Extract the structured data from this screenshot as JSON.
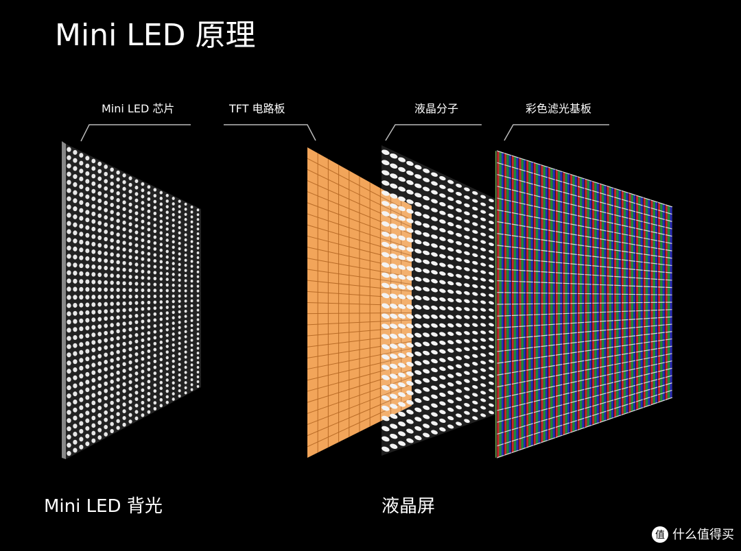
{
  "title": "Mini LED 原理",
  "layers": [
    {
      "label": "Mini LED 芯片"
    },
    {
      "label": "TFT 电路板"
    },
    {
      "label": "液晶分子"
    },
    {
      "label": "彩色滤光基板"
    }
  ],
  "groups": [
    {
      "label": "Mini LED 背光"
    },
    {
      "label": "液晶屏"
    }
  ],
  "watermark": {
    "icon": "值",
    "text": "什么值得买"
  }
}
